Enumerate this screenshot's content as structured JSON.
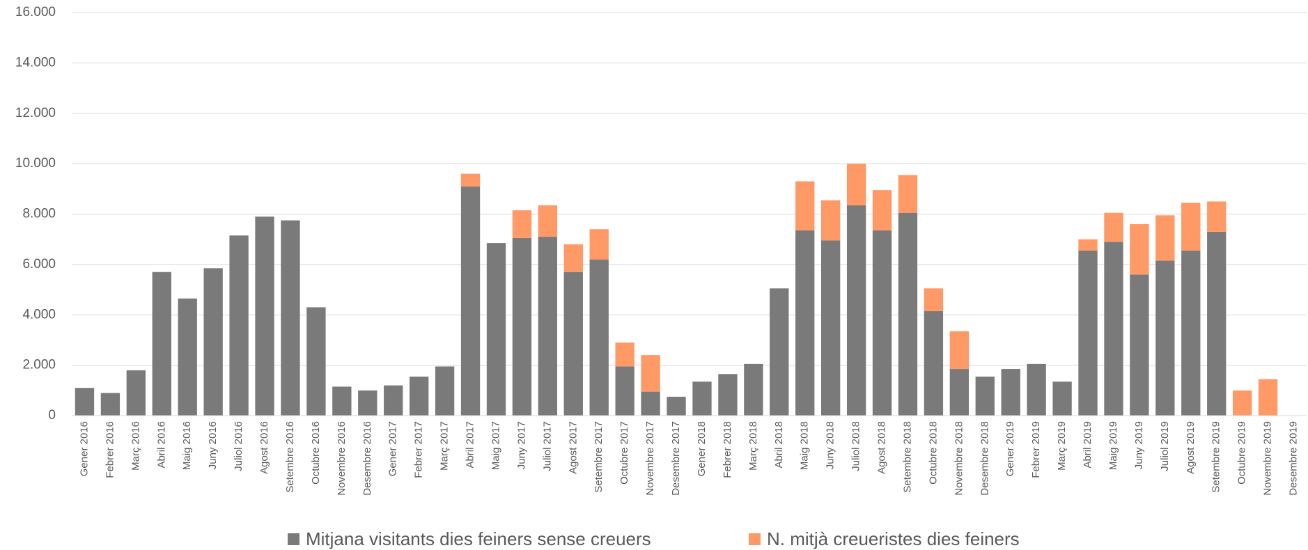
{
  "chart_data": {
    "type": "stacked_bar",
    "categories": [
      "Gener 2016",
      "Febrer 2016",
      "Març 2016",
      "Abril 2016",
      "Maig 2016",
      "Juny 2016",
      "Juliol 2016",
      "Agost 2016",
      "Setembre 2016",
      "Octubre 2016",
      "Novembre 2016",
      "Desembre 2016",
      "Gener 2017",
      "Febrer 2017",
      "Març 2017",
      "Abril 2017",
      "Maig 2017",
      "Juny 2017",
      "Juliol 2017",
      "Agost 2017",
      "Setembre 2017",
      "Octubre 2017",
      "Novembre 2017",
      "Desembre 2017",
      "Gener 2018",
      "Febrer 2018",
      "Març 2018",
      "Abril 2018",
      "Maig 2018",
      "Juny 2018",
      "Juliol 2018",
      "Agost 2018",
      "Setembre 2018",
      "Octubre 2018",
      "Novembre 2018",
      "Desembre 2018",
      "Gener 2019",
      "Febrer 2019",
      "Març 2019",
      "Abril 2019",
      "Maig 2019",
      "Juny 2019",
      "Juliol 2019",
      "Agost 2019",
      "Setembre 2019",
      "Octubre 2019",
      "Novembre 2019",
      "Desembre 2019"
    ],
    "series": [
      {
        "name": "Mitjana visitants dies feiners sense creuers",
        "color": "#7a7a7a",
        "values": [
          1100,
          900,
          1800,
          5700,
          4650,
          5850,
          7150,
          7900,
          7750,
          4300,
          1150,
          1000,
          1200,
          1550,
          1950,
          9100,
          6850,
          7050,
          7100,
          5700,
          6200,
          1950,
          950,
          750,
          1350,
          1650,
          2050,
          5050,
          7350,
          6950,
          8350,
          7350,
          8050,
          4150,
          1850,
          1550,
          1850,
          2050,
          1350,
          6550,
          6900,
          5600,
          6150,
          6550,
          7300,
          null,
          null,
          null
        ]
      },
      {
        "name": "N. mitjà creueristes dies feiners",
        "color": "#ff9966",
        "values": [
          null,
          null,
          null,
          null,
          null,
          null,
          null,
          null,
          null,
          null,
          null,
          null,
          null,
          null,
          null,
          500,
          null,
          1100,
          1250,
          1100,
          1200,
          950,
          1450,
          null,
          null,
          null,
          null,
          null,
          1950,
          1600,
          1650,
          1600,
          1500,
          900,
          1500,
          null,
          null,
          null,
          null,
          450,
          1150,
          2000,
          1800,
          1900,
          1200,
          1000,
          1450,
          null
        ]
      }
    ],
    "ylim": [
      0,
      16000
    ],
    "yticks": [
      0,
      {
        "value": 2000,
        "label": "2.000"
      },
      {
        "value": 4000,
        "label": "4.000"
      },
      {
        "value": 6000,
        "label": "6.000"
      },
      {
        "value": 8000,
        "label": "8.000"
      },
      {
        "value": 10000,
        "label": "10.000"
      },
      {
        "value": 12000,
        "label": "12.000"
      },
      {
        "value": 14000,
        "label": "14.000"
      },
      {
        "value": 16000,
        "label": "16.000"
      }
    ],
    "grid": true,
    "legend": "bottom"
  }
}
